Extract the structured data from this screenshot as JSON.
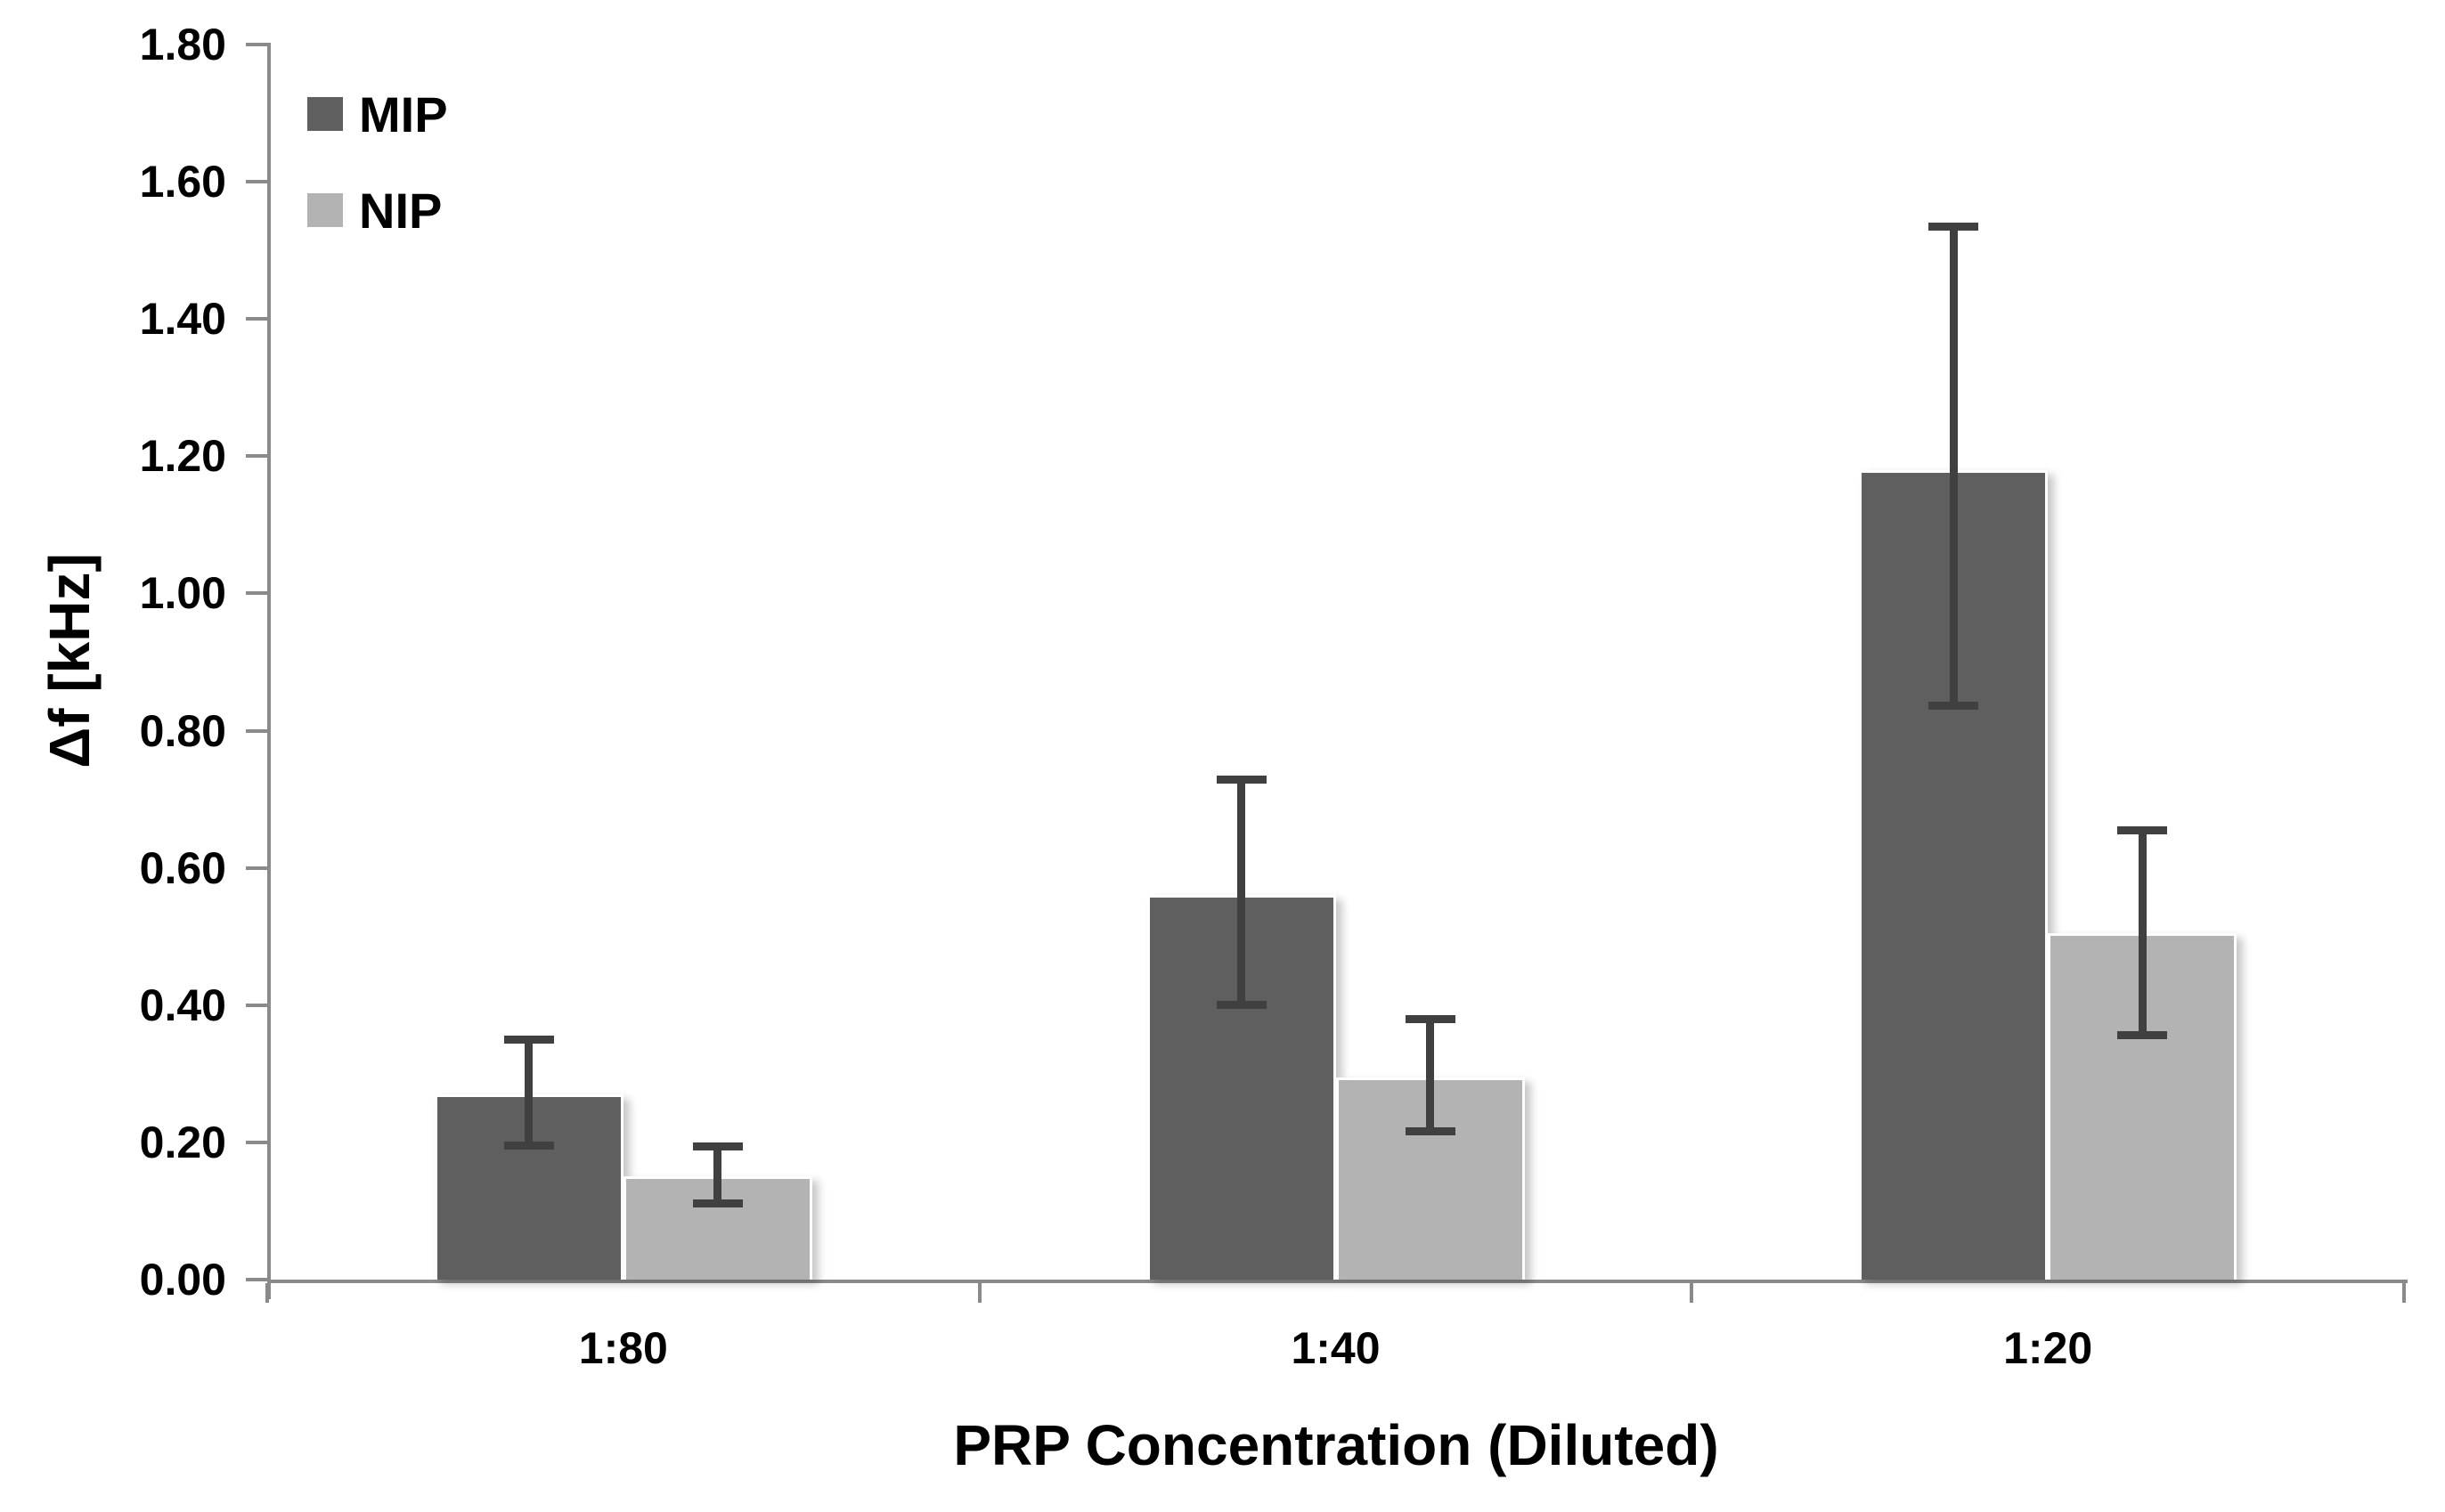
{
  "chart_data": {
    "type": "bar",
    "title": "",
    "xlabel": "PRP Concentration (Diluted)",
    "ylabel": "Δf [kHz]",
    "categories": [
      "1:80",
      "1:40",
      "1:20"
    ],
    "series": [
      {
        "name": "MIP",
        "color": "#5f5f5f",
        "values": [
          0.27,
          0.56,
          1.18
        ],
        "err_low": [
          0.19,
          0.395,
          0.83
        ],
        "err_high": [
          0.355,
          0.735,
          1.54
        ]
      },
      {
        "name": "NIP",
        "color": "#b3b3b3",
        "values": [
          0.15,
          0.295,
          0.505
        ],
        "err_low": [
          0.105,
          0.21,
          0.35
        ],
        "err_high": [
          0.2,
          0.385,
          0.66
        ]
      }
    ],
    "ylim": [
      0,
      1.8
    ],
    "yticks": [
      {
        "label": "0.00",
        "value": 0.0
      },
      {
        "label": "0.20",
        "value": 0.2
      },
      {
        "label": "0.40",
        "value": 0.4
      },
      {
        "label": "0.60",
        "value": 0.6
      },
      {
        "label": "0.80",
        "value": 0.8
      },
      {
        "label": "1.00",
        "value": 1.0
      },
      {
        "label": "1.20",
        "value": 1.2
      },
      {
        "label": "1.40",
        "value": 1.4
      },
      {
        "label": "1.60",
        "value": 1.6
      },
      {
        "label": "1.80",
        "value": 1.8
      }
    ],
    "grid": false,
    "legend_position": "top-left",
    "error_bar_color": "#404040",
    "axis_color": "#8a8a8a",
    "text_color": "#000000"
  }
}
